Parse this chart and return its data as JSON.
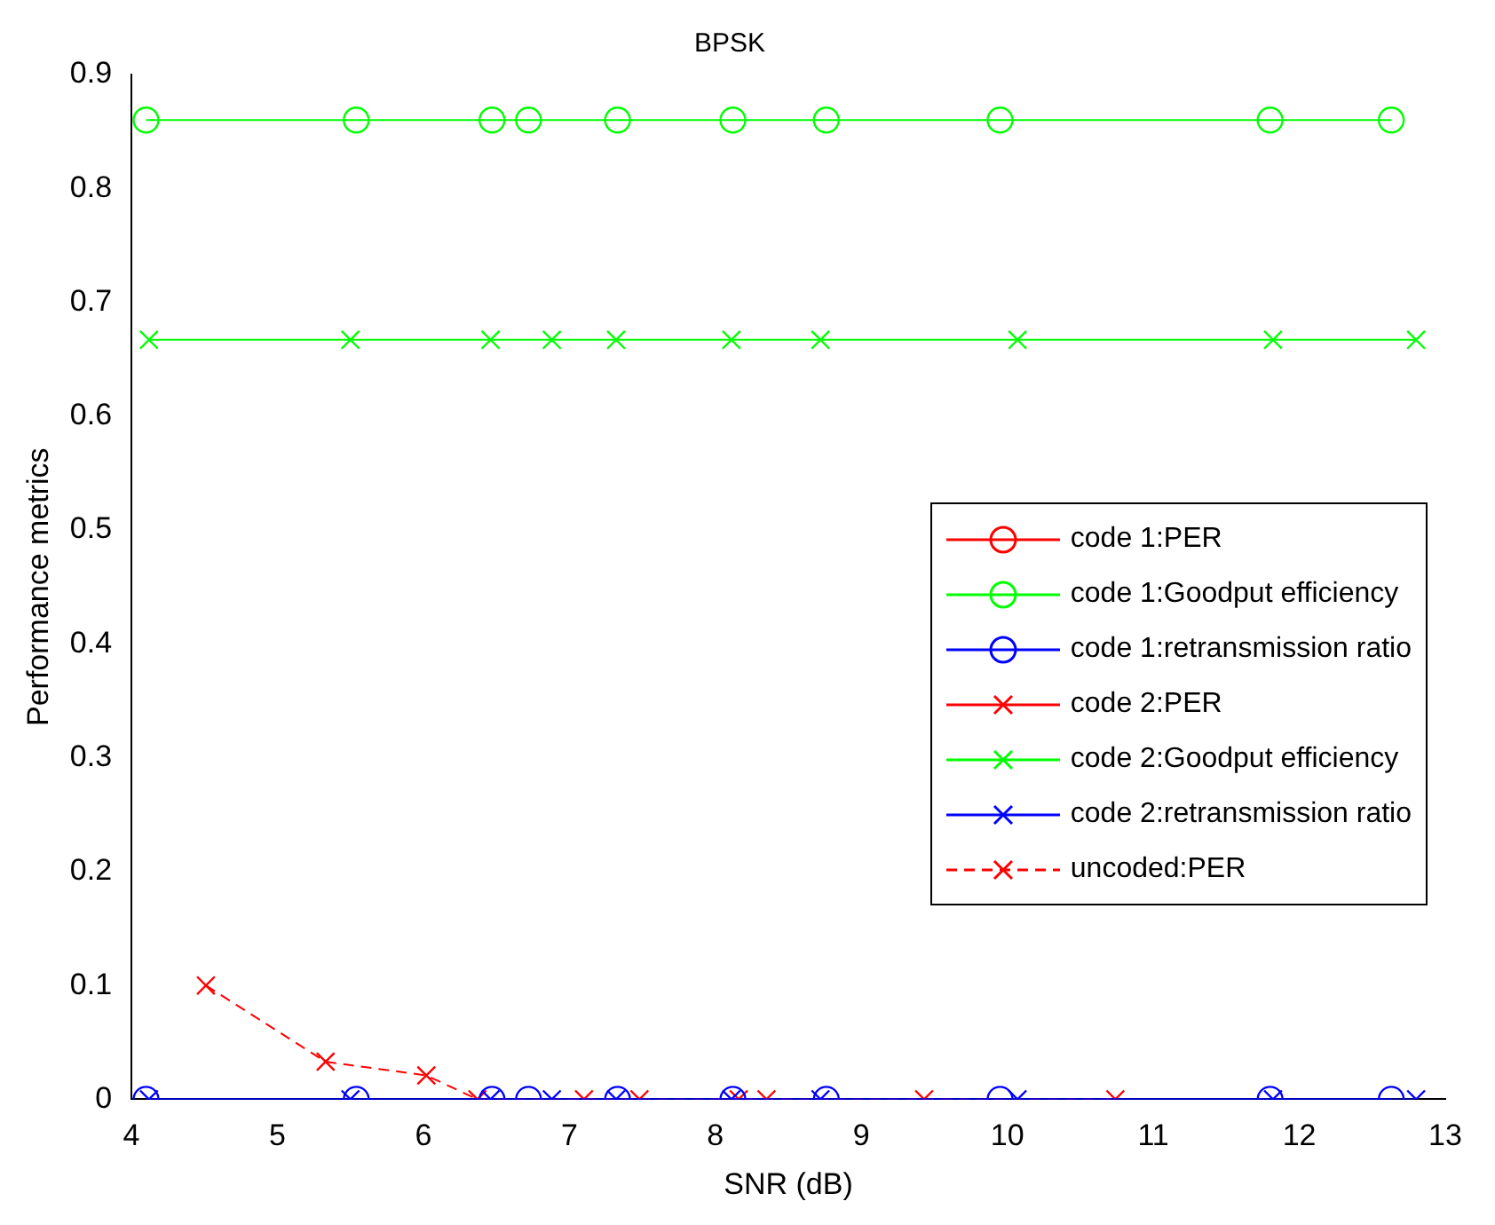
{
  "chart_data": {
    "type": "line",
    "title": "BPSK",
    "xlabel": "SNR (dB)",
    "ylabel": "Performance metrics",
    "xlim": [
      4,
      13
    ],
    "xticks": [
      4,
      5,
      6,
      7,
      8,
      9,
      10,
      11,
      12,
      13
    ],
    "ylim": [
      0,
      0.9
    ],
    "yticks": [
      0,
      0.1,
      0.2,
      0.3,
      0.4,
      0.5,
      0.6,
      0.7,
      0.8,
      0.9
    ],
    "grid": false,
    "legend": "right",
    "series": [
      {
        "name": "code 1:PER",
        "color": "#ff0000",
        "marker": "circle",
        "line_style": "solid"
      },
      {
        "name": "code 1:Goodput efficiency",
        "color": "#00ff00",
        "marker": "circle",
        "line_style": "solid",
        "x": [
          4.1,
          5.54,
          6.47,
          6.72,
          7.33,
          8.12,
          8.76,
          9.95,
          11.8,
          12.63
        ],
        "values": [
          0.86,
          0.86,
          0.86,
          0.86,
          0.86,
          0.86,
          0.86,
          0.86,
          0.86,
          0.86
        ]
      },
      {
        "name": "code 1:retransmission ratio",
        "color": "#0000ff",
        "marker": "circle",
        "line_style": "solid",
        "x": [
          4.1,
          5.54,
          6.47,
          6.72,
          7.33,
          8.12,
          8.76,
          9.95,
          11.8,
          12.63
        ],
        "values": [
          0,
          0,
          0,
          0,
          0,
          0,
          0,
          0,
          0,
          0
        ]
      },
      {
        "name": "code 2:PER",
        "color": "#ff0000",
        "marker": "cross",
        "line_style": "solid"
      },
      {
        "name": "code 2:Goodput efficiency",
        "color": "#00ff00",
        "marker": "cross",
        "line_style": "solid",
        "x": [
          4.12,
          5.5,
          6.46,
          6.88,
          7.32,
          8.11,
          8.72,
          10.07,
          11.82,
          12.8
        ],
        "values": [
          0.667,
          0.667,
          0.667,
          0.667,
          0.667,
          0.667,
          0.667,
          0.667,
          0.667,
          0.667
        ]
      },
      {
        "name": "code 2:retransmission ratio",
        "color": "#0000ff",
        "marker": "cross",
        "line_style": "solid",
        "x": [
          4.12,
          5.5,
          6.46,
          6.88,
          7.32,
          8.11,
          8.72,
          10.07,
          11.82,
          12.8
        ],
        "values": [
          0,
          0,
          0,
          0,
          0,
          0,
          0,
          0,
          0,
          0
        ]
      },
      {
        "name": "uncoded:PER",
        "color": "#ff0000",
        "marker": "cross",
        "line_style": "dashed",
        "x": [
          4.51,
          5.33,
          6.02,
          6.37,
          7.1,
          7.48,
          8.16,
          8.35,
          9.43,
          10.74
        ],
        "values": [
          0.1,
          0.033,
          0.021,
          0,
          0,
          0,
          0,
          0,
          0,
          0
        ]
      }
    ]
  }
}
